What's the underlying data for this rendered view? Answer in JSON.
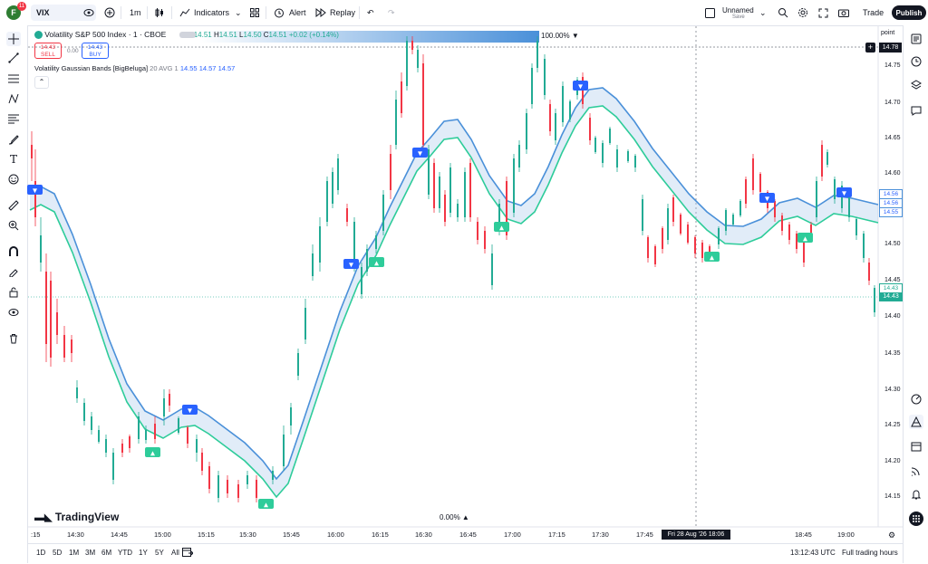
{
  "topbar": {
    "avatar_letter": "F",
    "notifications": "11",
    "symbol": "VIX",
    "interval": "1m",
    "indicators": "Indicators",
    "alert": "Alert",
    "replay": "Replay",
    "layout_name": "Unnamed",
    "layout_status": "Save",
    "trade": "Trade",
    "publish": "Publish"
  },
  "legend": {
    "title": "Volatility S&P 500 Index · 1 · CBOE",
    "o_label": "O",
    "o": "14.51",
    "h_label": "H",
    "h": "14.51",
    "l_label": "L",
    "l": "14.50",
    "c_label": "C",
    "c": "14.51",
    "change": "+0.02 (+0.14%)",
    "sell_price": "14.43",
    "sell_label": "SELL",
    "spread": "0.00",
    "buy_price": "14.43",
    "buy_label": "BUY",
    "indicator": "Volatility Gaussian Bands [BigBeluga]",
    "ind_params": "20 AVG 1",
    "ind_v1": "14.55",
    "ind_v2": "14.57",
    "ind_v3": "14.57",
    "pct_top": "100.00%",
    "pct_bottom": "0.00%"
  },
  "price_scale": {
    "unit": "point",
    "labels": [
      "14.75",
      "14.70",
      "14.65",
      "14.60",
      "14.55",
      "14.50",
      "14.45",
      "14.40",
      "14.35",
      "14.30",
      "14.25",
      "14.20",
      "14.15"
    ],
    "marker_top": "14.78",
    "band_upper": "14.56",
    "band_mid": "14.56",
    "band_lower": "14.55",
    "last_dim": "14.43",
    "last": "14.43"
  },
  "time_scale": {
    "labels": [
      ":15",
      "14:30",
      "14:45",
      "15:00",
      "15:15",
      "15:30",
      "15:45",
      "16:00",
      "16:15",
      "16:30",
      "16:45",
      "17:00",
      "17:15",
      "17:30",
      "17:45",
      "18:45",
      "19:00"
    ],
    "crosshair": "Fri 28 Aug '26   18:06"
  },
  "watermark": "TradingView",
  "bottombar": {
    "ranges": [
      "1D",
      "5D",
      "1M",
      "3M",
      "6M",
      "YTD",
      "1Y",
      "5Y",
      "All"
    ],
    "clock": "13:12:43 UTC",
    "session": "Full trading hours"
  },
  "colors": {
    "up": "#22ab94",
    "down": "#f23645",
    "band_upper": "#4a90d9",
    "band_lower": "#2ecc9a",
    "accent": "#2962ff"
  },
  "icons": {
    "left": [
      "crosshair-icon",
      "trendline-icon",
      "horizontal-lines-icon",
      "pattern-icon",
      "fib-icon",
      "brush-icon",
      "text-icon",
      "emoji-icon",
      "ruler-icon",
      "zoom-icon",
      "magnet-icon",
      "lock-drawing-icon",
      "lock-icon",
      "eye-icon",
      "trash-icon"
    ],
    "right": [
      "watchlist-icon",
      "alerts-clock-icon",
      "layers-icon",
      "chat-icon",
      "target-icon",
      "pyramid-icon",
      "calendar-icon",
      "broadcast-icon",
      "bell-icon",
      "grid-icon"
    ]
  }
}
